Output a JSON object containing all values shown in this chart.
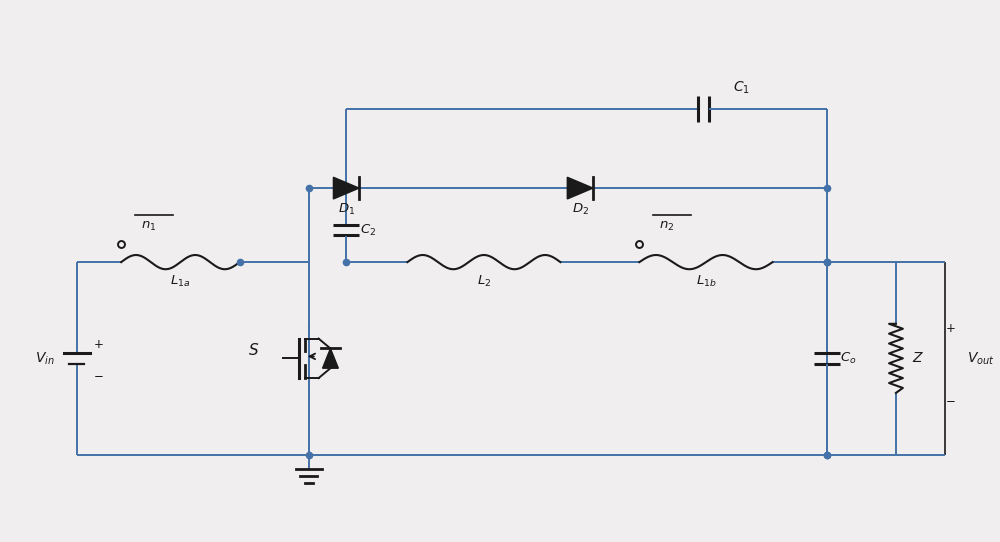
{
  "bg_color": "#f0eeee",
  "line_color": "#4472a8",
  "component_color": "#1a1a1a",
  "fig_width": 10.0,
  "fig_height": 5.42,
  "lw_wire": 1.4,
  "lw_comp": 2.0
}
